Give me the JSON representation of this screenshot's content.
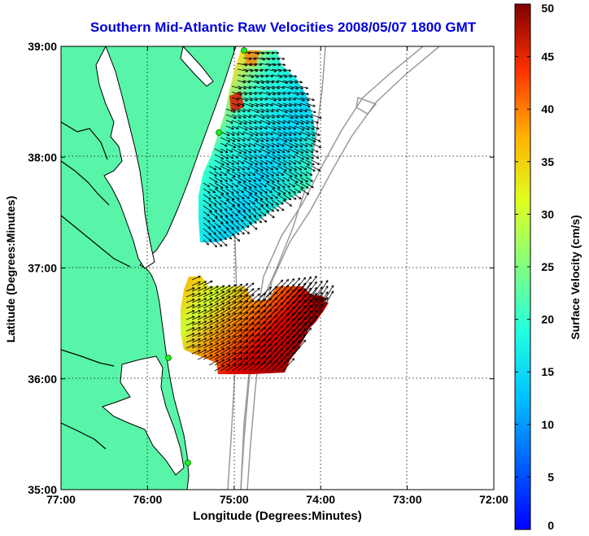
{
  "map": {
    "title": "Southern Mid-Atlantic Raw Velocities 2008/05/07 1800 GMT",
    "xlabel": "Longitude (Degrees:Minutes)",
    "ylabel": "Latitude (Degrees:Minutes)",
    "x_ticks": [
      "77:00",
      "76:00",
      "75:00",
      "74:00",
      "73:00",
      "72:00"
    ],
    "y_ticks": [
      "39:00",
      "38:00",
      "37:00",
      "36:00",
      "35:00"
    ],
    "colors": {
      "land": "#58f5a8",
      "water": "#ffffff",
      "bathymetry": "#9a9a9a",
      "station": "#22ee22",
      "title": "#0000dd"
    }
  },
  "colorbar": {
    "label": "Surface Velocity (cm/s)",
    "ticks": [
      "0",
      "5",
      "10",
      "15",
      "20",
      "25",
      "30",
      "35",
      "40",
      "45",
      "50"
    ],
    "min": 0,
    "max": 50,
    "colormap": "jet"
  }
}
